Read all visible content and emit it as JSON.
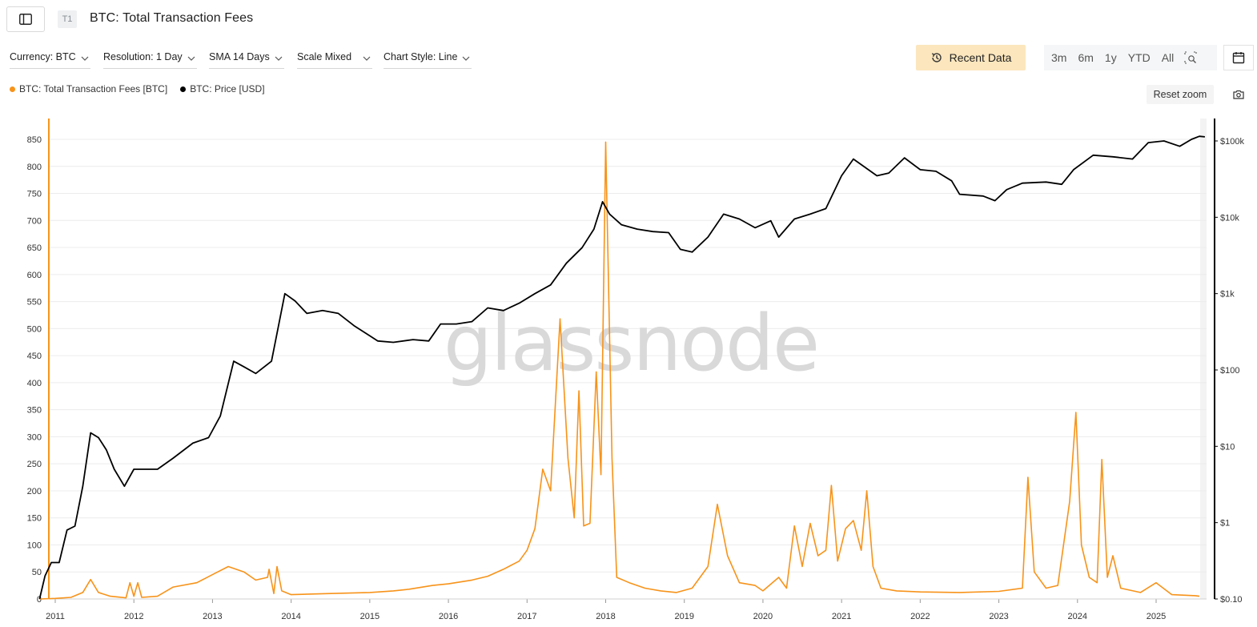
{
  "header": {
    "tier_badge": "T1",
    "title": "BTC: Total Transaction Fees"
  },
  "controls": {
    "currency": "Currency: BTC",
    "resolution": "Resolution: 1 Day",
    "sma": "SMA 14 Days",
    "scale": "Scale Mixed",
    "chart_style": "Chart Style: Line"
  },
  "toolbar": {
    "recent_data": "Recent Data",
    "ranges": [
      "3m",
      "6m",
      "1y",
      "YTD",
      "All"
    ],
    "reset_zoom": "Reset zoom"
  },
  "legend": [
    {
      "label": "BTC: Total Transaction Fees [BTC]",
      "color": "#f7931a"
    },
    {
      "label": "BTC: Price [USD]",
      "color": "#000000"
    }
  ],
  "watermark": "glassnode",
  "colors": {
    "fees": "#f7931a",
    "price": "#000000",
    "accent_button": "#fbe6bd"
  },
  "chart_data": {
    "type": "line",
    "title": "BTC: Total Transaction Fees",
    "x_ticks": [
      "2011",
      "2012",
      "2013",
      "2014",
      "2015",
      "2016",
      "2017",
      "2018",
      "2019",
      "2020",
      "2021",
      "2022",
      "2023",
      "2024",
      "2025"
    ],
    "xlim": [
      2010.75,
      2025.75
    ],
    "y_left": {
      "scale": "linear",
      "lim": [
        0,
        880
      ],
      "ticks": [
        "0",
        "50",
        "100",
        "150",
        "200",
        "250",
        "300",
        "350",
        "400",
        "450",
        "500",
        "550",
        "600",
        "650",
        "700",
        "750",
        "800",
        "850"
      ]
    },
    "y_right": {
      "scale": "log",
      "lim": [
        0.1,
        140000
      ],
      "ticks": [
        "$0.10",
        "$1",
        "$10",
        "$100",
        "$1k",
        "$10k",
        "$100k"
      ]
    },
    "grid": true,
    "legend_position": "top-left",
    "series": [
      {
        "name": "BTC: Total Transaction Fees [BTC]",
        "axis": "left",
        "points": [
          [
            2010.8,
            0
          ],
          [
            2011.0,
            1
          ],
          [
            2011.2,
            3
          ],
          [
            2011.35,
            12
          ],
          [
            2011.45,
            36
          ],
          [
            2011.55,
            12
          ],
          [
            2011.7,
            5
          ],
          [
            2011.9,
            2
          ],
          [
            2011.95,
            30
          ],
          [
            2012.0,
            5
          ],
          [
            2012.05,
            30
          ],
          [
            2012.1,
            3
          ],
          [
            2012.3,
            5
          ],
          [
            2012.5,
            22
          ],
          [
            2012.8,
            30
          ],
          [
            2013.0,
            45
          ],
          [
            2013.2,
            60
          ],
          [
            2013.4,
            50
          ],
          [
            2013.55,
            35
          ],
          [
            2013.7,
            40
          ],
          [
            2013.72,
            55
          ],
          [
            2013.78,
            10
          ],
          [
            2013.82,
            60
          ],
          [
            2013.88,
            15
          ],
          [
            2014.0,
            8
          ],
          [
            2014.5,
            10
          ],
          [
            2015.0,
            12
          ],
          [
            2015.3,
            15
          ],
          [
            2015.5,
            18
          ],
          [
            2015.8,
            25
          ],
          [
            2016.0,
            28
          ],
          [
            2016.3,
            35
          ],
          [
            2016.5,
            42
          ],
          [
            2016.7,
            55
          ],
          [
            2016.9,
            70
          ],
          [
            2017.0,
            90
          ],
          [
            2017.1,
            130
          ],
          [
            2017.2,
            240
          ],
          [
            2017.3,
            200
          ],
          [
            2017.42,
            518
          ],
          [
            2017.52,
            260
          ],
          [
            2017.6,
            150
          ],
          [
            2017.66,
            385
          ],
          [
            2017.72,
            135
          ],
          [
            2017.8,
            140
          ],
          [
            2017.88,
            420
          ],
          [
            2017.94,
            230
          ],
          [
            2018.0,
            845
          ],
          [
            2018.08,
            260
          ],
          [
            2018.14,
            40
          ],
          [
            2018.3,
            30
          ],
          [
            2018.5,
            20
          ],
          [
            2018.7,
            15
          ],
          [
            2018.9,
            12
          ],
          [
            2019.1,
            20
          ],
          [
            2019.3,
            60
          ],
          [
            2019.42,
            175
          ],
          [
            2019.55,
            80
          ],
          [
            2019.7,
            30
          ],
          [
            2019.9,
            25
          ],
          [
            2020.0,
            15
          ],
          [
            2020.2,
            40
          ],
          [
            2020.3,
            20
          ],
          [
            2020.4,
            135
          ],
          [
            2020.5,
            60
          ],
          [
            2020.6,
            140
          ],
          [
            2020.7,
            80
          ],
          [
            2020.8,
            90
          ],
          [
            2020.87,
            210
          ],
          [
            2020.95,
            70
          ],
          [
            2021.05,
            130
          ],
          [
            2021.15,
            145
          ],
          [
            2021.25,
            90
          ],
          [
            2021.32,
            200
          ],
          [
            2021.4,
            60
          ],
          [
            2021.5,
            20
          ],
          [
            2021.7,
            15
          ],
          [
            2022.0,
            13
          ],
          [
            2022.5,
            12
          ],
          [
            2023.0,
            14
          ],
          [
            2023.3,
            20
          ],
          [
            2023.37,
            225
          ],
          [
            2023.45,
            50
          ],
          [
            2023.6,
            20
          ],
          [
            2023.75,
            25
          ],
          [
            2023.9,
            180
          ],
          [
            2023.98,
            345
          ],
          [
            2024.05,
            100
          ],
          [
            2024.15,
            40
          ],
          [
            2024.25,
            30
          ],
          [
            2024.31,
            258
          ],
          [
            2024.38,
            40
          ],
          [
            2024.45,
            80
          ],
          [
            2024.55,
            20
          ],
          [
            2024.8,
            12
          ],
          [
            2025.0,
            30
          ],
          [
            2025.2,
            8
          ],
          [
            2025.5,
            6
          ],
          [
            2025.55,
            5
          ]
        ]
      },
      {
        "name": "BTC: Price [USD]",
        "axis": "right",
        "points": [
          [
            2010.8,
            0.1
          ],
          [
            2010.87,
            0.2
          ],
          [
            2010.95,
            0.3
          ],
          [
            2011.05,
            0.3
          ],
          [
            2011.15,
            0.8
          ],
          [
            2011.25,
            0.9
          ],
          [
            2011.35,
            3
          ],
          [
            2011.45,
            15
          ],
          [
            2011.55,
            13
          ],
          [
            2011.65,
            9
          ],
          [
            2011.75,
            5
          ],
          [
            2011.88,
            3
          ],
          [
            2012.0,
            5
          ],
          [
            2012.1,
            5
          ],
          [
            2012.3,
            5
          ],
          [
            2012.5,
            7
          ],
          [
            2012.75,
            11
          ],
          [
            2012.95,
            13
          ],
          [
            2013.1,
            25
          ],
          [
            2013.27,
            130
          ],
          [
            2013.4,
            110
          ],
          [
            2013.55,
            90
          ],
          [
            2013.75,
            130
          ],
          [
            2013.92,
            1000
          ],
          [
            2014.05,
            800
          ],
          [
            2014.2,
            550
          ],
          [
            2014.4,
            600
          ],
          [
            2014.6,
            550
          ],
          [
            2014.8,
            380
          ],
          [
            2015.0,
            280
          ],
          [
            2015.1,
            240
          ],
          [
            2015.3,
            230
          ],
          [
            2015.55,
            250
          ],
          [
            2015.75,
            240
          ],
          [
            2015.9,
            400
          ],
          [
            2016.1,
            400
          ],
          [
            2016.3,
            430
          ],
          [
            2016.5,
            650
          ],
          [
            2016.7,
            600
          ],
          [
            2016.9,
            750
          ],
          [
            2017.1,
            1000
          ],
          [
            2017.3,
            1300
          ],
          [
            2017.5,
            2500
          ],
          [
            2017.7,
            4000
          ],
          [
            2017.85,
            7000
          ],
          [
            2017.96,
            16000
          ],
          [
            2018.05,
            11000
          ],
          [
            2018.2,
            8000
          ],
          [
            2018.4,
            7000
          ],
          [
            2018.6,
            6500
          ],
          [
            2018.8,
            6300
          ],
          [
            2018.95,
            3800
          ],
          [
            2019.1,
            3500
          ],
          [
            2019.3,
            5500
          ],
          [
            2019.5,
            11000
          ],
          [
            2019.7,
            9500
          ],
          [
            2019.9,
            7300
          ],
          [
            2020.1,
            9000
          ],
          [
            2020.2,
            5500
          ],
          [
            2020.4,
            9500
          ],
          [
            2020.6,
            11000
          ],
          [
            2020.8,
            13000
          ],
          [
            2021.0,
            35000
          ],
          [
            2021.15,
            58000
          ],
          [
            2021.45,
            35000
          ],
          [
            2021.6,
            38000
          ],
          [
            2021.8,
            60000
          ],
          [
            2022.0,
            42000
          ],
          [
            2022.2,
            40000
          ],
          [
            2022.4,
            30000
          ],
          [
            2022.5,
            20000
          ],
          [
            2022.8,
            19000
          ],
          [
            2022.95,
            16500
          ],
          [
            2023.1,
            23000
          ],
          [
            2023.3,
            28000
          ],
          [
            2023.6,
            29000
          ],
          [
            2023.8,
            27000
          ],
          [
            2023.95,
            42000
          ],
          [
            2024.2,
            65000
          ],
          [
            2024.45,
            62000
          ],
          [
            2024.7,
            58000
          ],
          [
            2024.9,
            95000
          ],
          [
            2025.1,
            100000
          ],
          [
            2025.3,
            85000
          ],
          [
            2025.45,
            105000
          ],
          [
            2025.55,
            115000
          ],
          [
            2025.62,
            113000
          ]
        ]
      }
    ]
  }
}
